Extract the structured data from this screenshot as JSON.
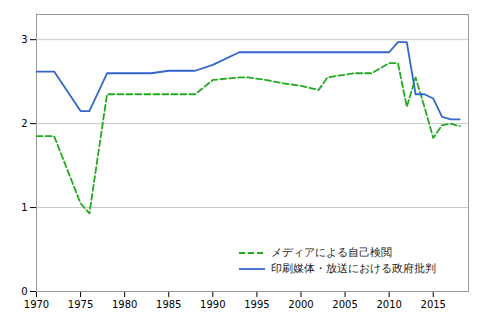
{
  "chart_data": {
    "type": "line",
    "x": [
      1970,
      1972,
      1975,
      1976,
      1978,
      1980,
      1983,
      1985,
      1988,
      1990,
      1993,
      1994,
      1996,
      1998,
      2000,
      2002,
      2003,
      2006,
      2008,
      2010,
      2011,
      2012,
      2013,
      2014,
      2015,
      2016,
      2017,
      2018
    ],
    "series": [
      {
        "name": "メディアによる自己検閲",
        "color": "#22aa22",
        "line_style": "dashed",
        "values": [
          1.85,
          1.85,
          1.05,
          0.93,
          2.35,
          2.35,
          2.35,
          2.35,
          2.35,
          2.52,
          2.55,
          2.55,
          2.52,
          2.48,
          2.45,
          2.4,
          2.55,
          2.6,
          2.6,
          2.72,
          2.72,
          2.2,
          2.55,
          2.2,
          1.83,
          1.98,
          2.0,
          1.97
        ]
      },
      {
        "name": "印刷媒体・放送における政府批判",
        "color": "#3366cc",
        "line_style": "solid",
        "values": [
          2.62,
          2.62,
          2.15,
          2.15,
          2.6,
          2.6,
          2.6,
          2.63,
          2.63,
          2.7,
          2.85,
          2.85,
          2.85,
          2.85,
          2.85,
          2.85,
          2.85,
          2.85,
          2.85,
          2.85,
          2.97,
          2.97,
          2.35,
          2.35,
          2.3,
          2.08,
          2.05,
          2.05
        ]
      }
    ],
    "xlim": [
      1970,
      2019
    ],
    "ylim": [
      0,
      3.3
    ],
    "xticks": [
      1970,
      1975,
      1980,
      1985,
      1990,
      1995,
      2000,
      2005,
      2010,
      2015
    ],
    "yticks": [
      0,
      1,
      2,
      3
    ],
    "grid": "y",
    "legend": "lower right"
  }
}
